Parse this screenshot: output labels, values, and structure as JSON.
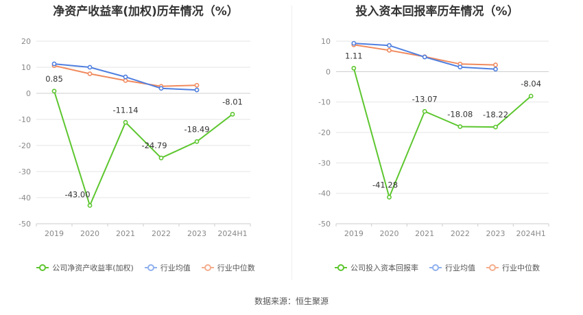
{
  "source_note": "数据来源：恒生聚源",
  "chart_data": [
    {
      "type": "line",
      "title": "净资产收益率(加权)历年情况（%）",
      "categories": [
        "2019",
        "2020",
        "2021",
        "2022",
        "2023",
        "2024H1"
      ],
      "ylim": [
        -50,
        20
      ],
      "yticks": [
        20,
        10,
        0,
        -10,
        -20,
        -30,
        -40,
        -50
      ],
      "grid": true,
      "legend": "bottom",
      "series": [
        {
          "name": "公司净资产收益率(加权)",
          "color": "#5cc62e",
          "values": [
            0.85,
            -43.0,
            -11.14,
            -24.79,
            -18.49,
            -8.01
          ],
          "labels": [
            "0.85",
            "-43.00",
            "-11.14",
            "-24.79",
            "-18.49",
            "-8.01"
          ]
        },
        {
          "name": "行业均值",
          "color": "#4f7fe0",
          "values": [
            11.3,
            10.0,
            6.3,
            1.9,
            1.3,
            null
          ]
        },
        {
          "name": "行业中位数",
          "color": "#f08a5d",
          "values": [
            10.6,
            7.5,
            4.9,
            2.7,
            3.1,
            null
          ]
        }
      ]
    },
    {
      "type": "line",
      "title": "投入资本回报率历年情况（%）",
      "categories": [
        "2019",
        "2020",
        "2021",
        "2022",
        "2023",
        "2024H1"
      ],
      "ylim": [
        -50,
        10
      ],
      "yticks": [
        10,
        0,
        -10,
        -20,
        -30,
        -40,
        -50
      ],
      "grid": true,
      "legend": "bottom",
      "series": [
        {
          "name": "公司投入资本回报率",
          "color": "#5cc62e",
          "values": [
            1.11,
            -41.28,
            -13.07,
            -18.08,
            -18.22,
            -8.04
          ],
          "labels": [
            "1.11",
            "-41.28",
            "-13.07",
            "-18.08",
            "-18.22",
            "-8.04"
          ]
        },
        {
          "name": "行业均值",
          "color": "#4f7fe0",
          "values": [
            9.3,
            8.6,
            4.8,
            1.5,
            0.8,
            null
          ]
        },
        {
          "name": "行业中位数",
          "color": "#f08a5d",
          "values": [
            8.8,
            7.0,
            4.9,
            2.5,
            2.2,
            null
          ]
        }
      ]
    }
  ]
}
